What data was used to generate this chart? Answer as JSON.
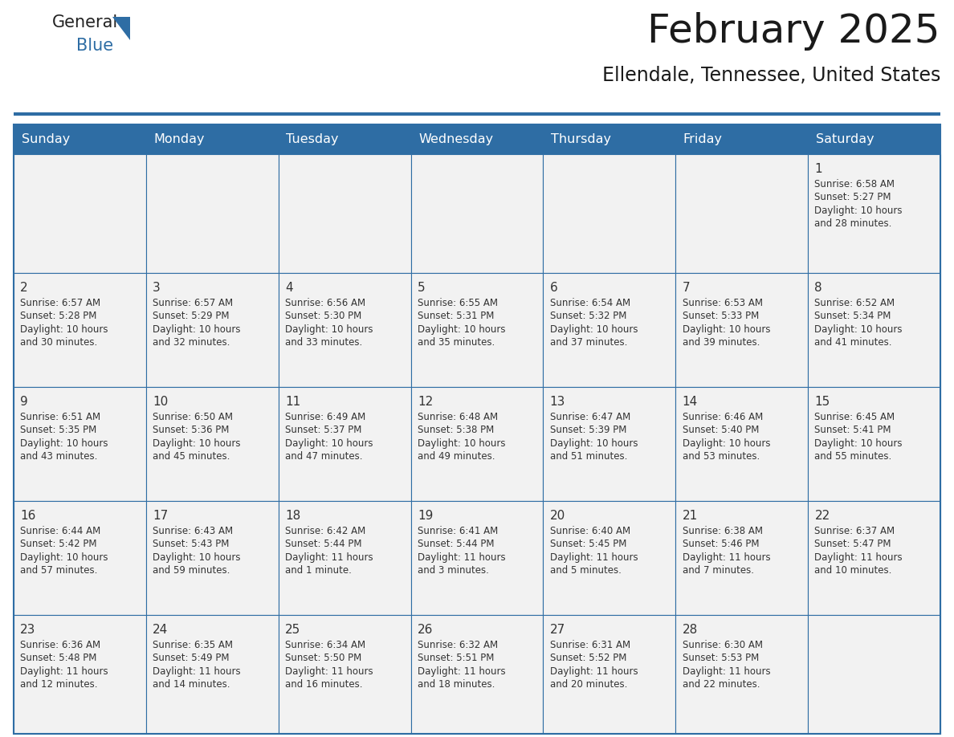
{
  "title": "February 2025",
  "subtitle": "Ellendale, Tennessee, United States",
  "header_bg": "#2E6DA4",
  "header_text_color": "#FFFFFF",
  "cell_bg": "#F2F2F2",
  "cell_bg_white": "#FFFFFF",
  "border_color": "#2E6DA4",
  "day_number_color": "#333333",
  "info_text_color": "#333333",
  "days_of_week": [
    "Sunday",
    "Monday",
    "Tuesday",
    "Wednesday",
    "Thursday",
    "Friday",
    "Saturday"
  ],
  "calendar_data": [
    [
      null,
      null,
      null,
      null,
      null,
      null,
      {
        "day": "1",
        "sunrise": "6:58 AM",
        "sunset": "5:27 PM",
        "daylight": "10 hours",
        "daylight2": "and 28 minutes."
      }
    ],
    [
      {
        "day": "2",
        "sunrise": "6:57 AM",
        "sunset": "5:28 PM",
        "daylight": "10 hours",
        "daylight2": "and 30 minutes."
      },
      {
        "day": "3",
        "sunrise": "6:57 AM",
        "sunset": "5:29 PM",
        "daylight": "10 hours",
        "daylight2": "and 32 minutes."
      },
      {
        "day": "4",
        "sunrise": "6:56 AM",
        "sunset": "5:30 PM",
        "daylight": "10 hours",
        "daylight2": "and 33 minutes."
      },
      {
        "day": "5",
        "sunrise": "6:55 AM",
        "sunset": "5:31 PM",
        "daylight": "10 hours",
        "daylight2": "and 35 minutes."
      },
      {
        "day": "6",
        "sunrise": "6:54 AM",
        "sunset": "5:32 PM",
        "daylight": "10 hours",
        "daylight2": "and 37 minutes."
      },
      {
        "day": "7",
        "sunrise": "6:53 AM",
        "sunset": "5:33 PM",
        "daylight": "10 hours",
        "daylight2": "and 39 minutes."
      },
      {
        "day": "8",
        "sunrise": "6:52 AM",
        "sunset": "5:34 PM",
        "daylight": "10 hours",
        "daylight2": "and 41 minutes."
      }
    ],
    [
      {
        "day": "9",
        "sunrise": "6:51 AM",
        "sunset": "5:35 PM",
        "daylight": "10 hours",
        "daylight2": "and 43 minutes."
      },
      {
        "day": "10",
        "sunrise": "6:50 AM",
        "sunset": "5:36 PM",
        "daylight": "10 hours",
        "daylight2": "and 45 minutes."
      },
      {
        "day": "11",
        "sunrise": "6:49 AM",
        "sunset": "5:37 PM",
        "daylight": "10 hours",
        "daylight2": "and 47 minutes."
      },
      {
        "day": "12",
        "sunrise": "6:48 AM",
        "sunset": "5:38 PM",
        "daylight": "10 hours",
        "daylight2": "and 49 minutes."
      },
      {
        "day": "13",
        "sunrise": "6:47 AM",
        "sunset": "5:39 PM",
        "daylight": "10 hours",
        "daylight2": "and 51 minutes."
      },
      {
        "day": "14",
        "sunrise": "6:46 AM",
        "sunset": "5:40 PM",
        "daylight": "10 hours",
        "daylight2": "and 53 minutes."
      },
      {
        "day": "15",
        "sunrise": "6:45 AM",
        "sunset": "5:41 PM",
        "daylight": "10 hours",
        "daylight2": "and 55 minutes."
      }
    ],
    [
      {
        "day": "16",
        "sunrise": "6:44 AM",
        "sunset": "5:42 PM",
        "daylight": "10 hours",
        "daylight2": "and 57 minutes."
      },
      {
        "day": "17",
        "sunrise": "6:43 AM",
        "sunset": "5:43 PM",
        "daylight": "10 hours",
        "daylight2": "and 59 minutes."
      },
      {
        "day": "18",
        "sunrise": "6:42 AM",
        "sunset": "5:44 PM",
        "daylight": "11 hours",
        "daylight2": "and 1 minute."
      },
      {
        "day": "19",
        "sunrise": "6:41 AM",
        "sunset": "5:44 PM",
        "daylight": "11 hours",
        "daylight2": "and 3 minutes."
      },
      {
        "day": "20",
        "sunrise": "6:40 AM",
        "sunset": "5:45 PM",
        "daylight": "11 hours",
        "daylight2": "and 5 minutes."
      },
      {
        "day": "21",
        "sunrise": "6:38 AM",
        "sunset": "5:46 PM",
        "daylight": "11 hours",
        "daylight2": "and 7 minutes."
      },
      {
        "day": "22",
        "sunrise": "6:37 AM",
        "sunset": "5:47 PM",
        "daylight": "11 hours",
        "daylight2": "and 10 minutes."
      }
    ],
    [
      {
        "day": "23",
        "sunrise": "6:36 AM",
        "sunset": "5:48 PM",
        "daylight": "11 hours",
        "daylight2": "and 12 minutes."
      },
      {
        "day": "24",
        "sunrise": "6:35 AM",
        "sunset": "5:49 PM",
        "daylight": "11 hours",
        "daylight2": "and 14 minutes."
      },
      {
        "day": "25",
        "sunrise": "6:34 AM",
        "sunset": "5:50 PM",
        "daylight": "11 hours",
        "daylight2": "and 16 minutes."
      },
      {
        "day": "26",
        "sunrise": "6:32 AM",
        "sunset": "5:51 PM",
        "daylight": "11 hours",
        "daylight2": "and 18 minutes."
      },
      {
        "day": "27",
        "sunrise": "6:31 AM",
        "sunset": "5:52 PM",
        "daylight": "11 hours",
        "daylight2": "and 20 minutes."
      },
      {
        "day": "28",
        "sunrise": "6:30 AM",
        "sunset": "5:53 PM",
        "daylight": "11 hours",
        "daylight2": "and 22 minutes."
      },
      null
    ]
  ]
}
